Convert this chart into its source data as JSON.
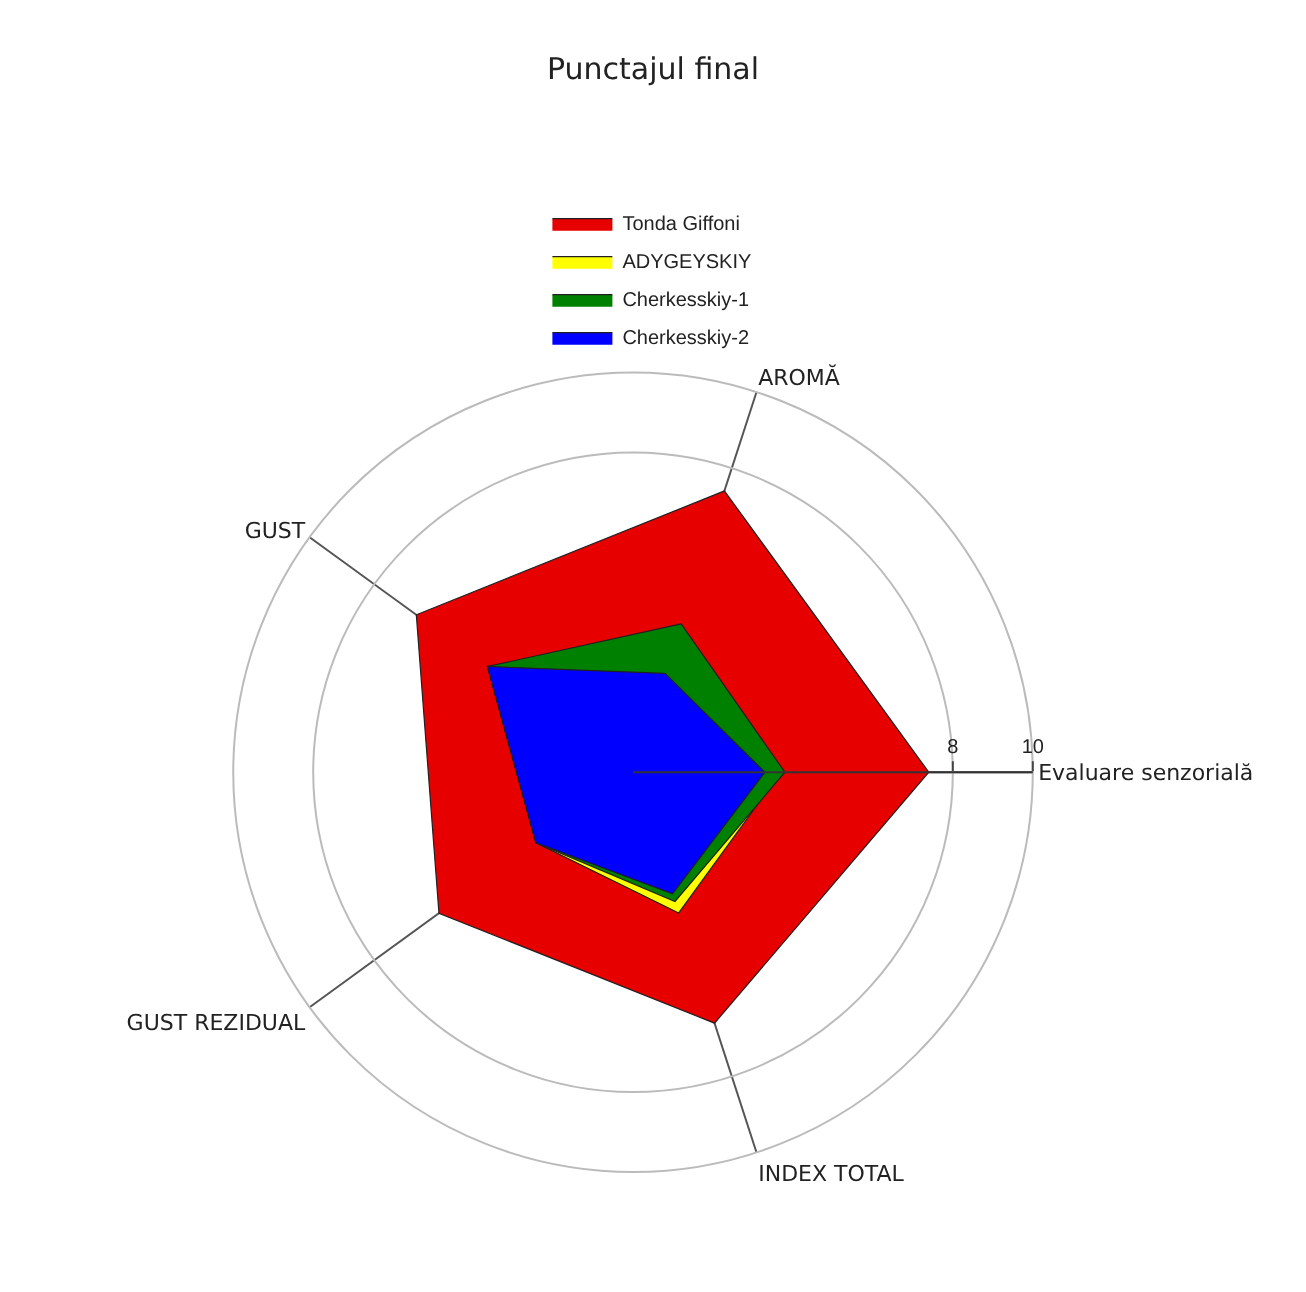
{
  "chart_data": {
    "type": "radar",
    "title": "Punctajul final",
    "categories": [
      "AROMĂ",
      "Evaluare senzorială",
      "INDEX TOTAL",
      "GUST REZIDUAL",
      "GUST"
    ],
    "series": [
      {
        "name": "Tonda Giffoni",
        "color": "#e60000",
        "values": [
          7.4,
          7.4,
          6.6,
          6.0,
          6.7
        ]
      },
      {
        "name": "ADYGEYSKIY",
        "color": "#ffff00",
        "values": [
          2.6,
          3.7,
          3.7,
          3.0,
          4.5
        ]
      },
      {
        "name": "Cherkesskiy-1",
        "color": "#008000",
        "values": [
          3.9,
          3.8,
          3.4,
          3.0,
          4.5
        ]
      },
      {
        "name": "Cherkesskiy-2",
        "color": "#0000ff",
        "values": [
          2.6,
          3.3,
          3.2,
          3.0,
          4.5
        ]
      }
    ],
    "ylim": [
      0,
      10
    ],
    "yticks": [
      8,
      10
    ],
    "grid": true,
    "legend": "top",
    "marker": "none"
  }
}
